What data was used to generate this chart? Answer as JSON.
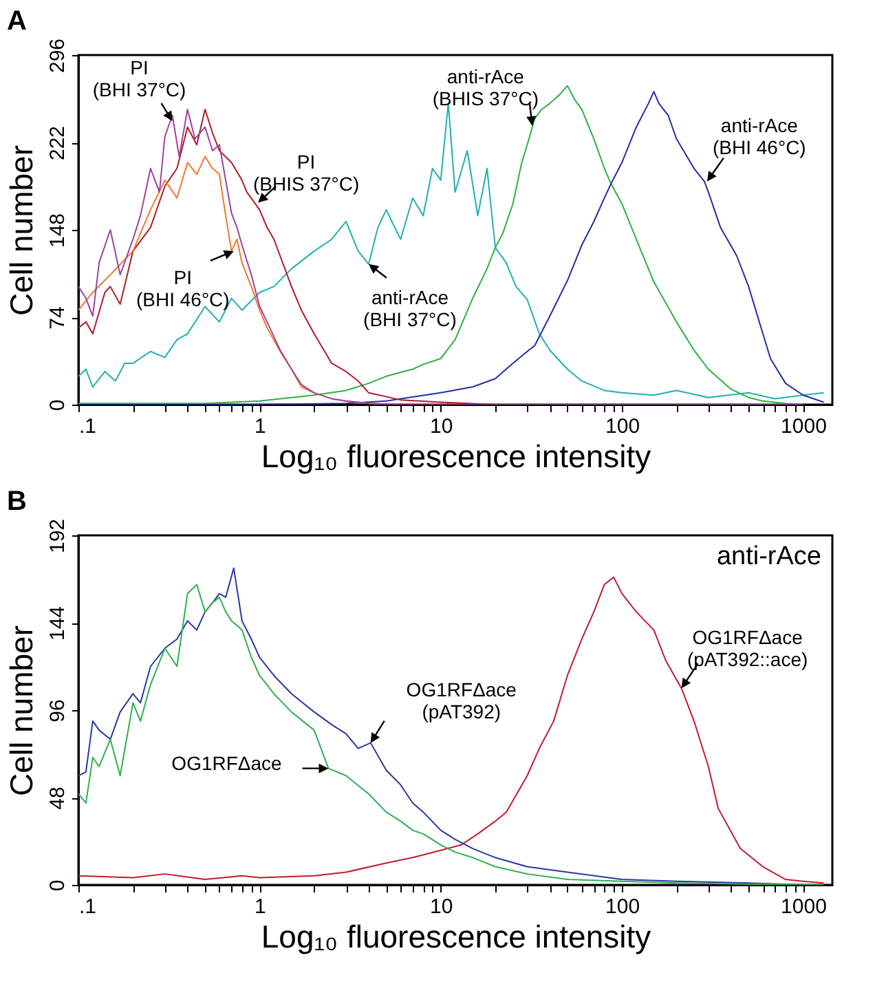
{
  "chart_data": [
    {
      "type": "line",
      "title": "A",
      "xlabel": "Log₁₀ fluorescence intensity",
      "ylabel": "Cell number",
      "log": "x",
      "xlim": [
        0.1,
        1450
      ],
      "ylim": [
        0,
        296
      ],
      "yticks": [
        0,
        74,
        148,
        222,
        296
      ],
      "xticks": [
        {
          "value": 0.1,
          "label": ".1"
        },
        {
          "value": 0.2,
          "label": null
        },
        {
          "value": 0.3,
          "label": null
        },
        {
          "value": 0.4,
          "label": null
        },
        {
          "value": 0.5,
          "label": null
        },
        {
          "value": 0.6,
          "label": null
        },
        {
          "value": 0.7,
          "label": null
        },
        {
          "value": 0.8,
          "label": null
        },
        {
          "value": 0.9,
          "label": null
        },
        1,
        {
          "value": 2,
          "label": null
        },
        {
          "value": 3,
          "label": null
        },
        {
          "value": 4,
          "label": null
        },
        {
          "value": 5,
          "label": null
        },
        {
          "value": 6,
          "label": null
        },
        {
          "value": 7,
          "label": null
        },
        {
          "value": 8,
          "label": null
        },
        {
          "value": 9,
          "label": null
        },
        10,
        {
          "value": 20,
          "label": null
        },
        {
          "value": 30,
          "label": null
        },
        {
          "value": 40,
          "label": null
        },
        {
          "value": 50,
          "label": null
        },
        {
          "value": 60,
          "label": null
        },
        {
          "value": 70,
          "label": null
        },
        {
          "value": 80,
          "label": null
        },
        {
          "value": 90,
          "label": null
        },
        100,
        {
          "value": 200,
          "label": null
        },
        {
          "value": 300,
          "label": null
        },
        {
          "value": 400,
          "label": null
        },
        {
          "value": 500,
          "label": null
        },
        {
          "value": 600,
          "label": null
        },
        {
          "value": 700,
          "label": null
        },
        {
          "value": 800,
          "label": null
        },
        {
          "value": 900,
          "label": null
        },
        1000
      ],
      "series": [
        {
          "color": "#20b0b0",
          "x": [
            0.1,
            0.11,
            0.12,
            0.14,
            0.16,
            0.18,
            0.2,
            0.25,
            0.3,
            0.35,
            0.4,
            0.5,
            0.6,
            0.7,
            0.8,
            1,
            1.2,
            1.5,
            2,
            2.5,
            3,
            3.5,
            4,
            4.5,
            5,
            6,
            7,
            8,
            9,
            10,
            11,
            12,
            14,
            16,
            18,
            20,
            23,
            26,
            30,
            35,
            40,
            50,
            60,
            80,
            100,
            150,
            200,
            300,
            500,
            700,
            1000,
            1300
          ],
          "values": [
            24,
            30,
            15,
            28,
            20,
            35,
            35,
            45,
            40,
            55,
            60,
            83,
            70,
            90,
            80,
            95,
            100,
            115,
            130,
            140,
            155,
            130,
            119,
            150,
            165,
            140,
            175,
            160,
            200,
            190,
            255,
            180,
            215,
            160,
            200,
            133,
            120,
            100,
            89,
            60,
            46,
            30,
            20,
            12,
            10,
            8,
            12,
            6,
            10,
            5,
            8,
            10
          ]
        },
        {
          "color": "#30b040",
          "x": [
            0.1,
            0.3,
            0.5,
            1,
            2,
            3,
            4,
            5,
            7,
            8,
            10,
            12,
            15,
            18,
            20,
            22,
            25,
            28,
            30,
            33,
            36,
            40,
            45,
            50,
            55,
            60,
            70,
            80,
            87,
            100,
            120,
            150,
            200,
            250,
            300,
            400,
            500,
            600,
            800,
            1000
          ],
          "values": [
            1,
            1,
            1,
            3,
            8,
            12,
            18,
            24,
            30,
            34,
            39,
            55,
            90,
            115,
            133,
            145,
            170,
            205,
            220,
            242,
            250,
            255,
            262,
            270,
            258,
            250,
            225,
            200,
            187,
            170,
            140,
            104,
            70,
            46,
            30,
            13,
            6,
            3,
            1,
            0
          ]
        },
        {
          "color": "#2030a0",
          "x": [
            0.1,
            1,
            3,
            5,
            10,
            15,
            20,
            25,
            30,
            33,
            40,
            50,
            60,
            70,
            80,
            87,
            100,
            120,
            140,
            150,
            160,
            180,
            200,
            250,
            285,
            300,
            350,
            430,
            500,
            600,
            660,
            800,
            1000,
            1300
          ],
          "values": [
            0,
            0,
            1,
            3,
            10,
            15,
            22,
            35,
            45,
            50,
            75,
            105,
            135,
            155,
            175,
            187,
            205,
            235,
            255,
            265,
            255,
            245,
            225,
            200,
            189,
            180,
            150,
            126,
            100,
            60,
            39,
            18,
            8,
            2
          ]
        },
        {
          "color": "#b01c24",
          "x": [
            0.1,
            0.11,
            0.12,
            0.14,
            0.15,
            0.17,
            0.2,
            0.25,
            0.3,
            0.35,
            0.4,
            0.45,
            0.5,
            0.55,
            0.6,
            0.7,
            0.8,
            0.85,
            1,
            1.1,
            1.2,
            1.5,
            1.7,
            2,
            2.5,
            3,
            3.5,
            4,
            6,
            10,
            20,
            1000
          ],
          "values": [
            65,
            70,
            60,
            95,
            100,
            85,
            130,
            150,
            185,
            200,
            235,
            220,
            250,
            230,
            215,
            205,
            190,
            180,
            165,
            150,
            140,
            100,
            80,
            60,
            35,
            28,
            20,
            10,
            4,
            2,
            0,
            0
          ]
        },
        {
          "color": "#f07830",
          "x": [
            0.1,
            0.12,
            0.15,
            0.2,
            0.25,
            0.3,
            0.35,
            0.4,
            0.45,
            0.5,
            0.55,
            0.6,
            0.65,
            0.7,
            0.75,
            0.8,
            0.9,
            1,
            1.1,
            1.3,
            1.5,
            1.7,
            2,
            2.5,
            3,
            4,
            6,
            10
          ],
          "values": [
            80,
            95,
            110,
            130,
            165,
            190,
            175,
            205,
            195,
            210,
            200,
            195,
            160,
            130,
            140,
            120,
            100,
            80,
            65,
            45,
            30,
            15,
            10,
            5,
            3,
            1,
            0,
            0
          ]
        },
        {
          "color": "#a040a0",
          "x": [
            0.1,
            0.11,
            0.12,
            0.13,
            0.15,
            0.17,
            0.2,
            0.22,
            0.25,
            0.28,
            0.3,
            0.33,
            0.36,
            0.4,
            0.44,
            0.5,
            0.55,
            0.6,
            0.65,
            0.7,
            0.75,
            0.8,
            0.9,
            1,
            1.1,
            1.3,
            1.5,
            1.7,
            2,
            2.5,
            3,
            4,
            6,
            10,
            30,
            100,
            1000
          ],
          "values": [
            100,
            90,
            75,
            120,
            148,
            110,
            140,
            160,
            200,
            180,
            227,
            245,
            210,
            250,
            225,
            235,
            215,
            220,
            190,
            162,
            150,
            135,
            110,
            83,
            70,
            46,
            30,
            17,
            10,
            5,
            3,
            1,
            0,
            0,
            0,
            0,
            0
          ]
        }
      ],
      "annotations": [
        {
          "text": "PI\n(BHI 37°C)",
          "x": 0.33,
          "y": 240
        },
        {
          "text": "PI\n(BHIS 37°C)",
          "x": 0.98,
          "y": 171
        },
        {
          "text": "PI\n(BHI 46°C)",
          "x": 0.72,
          "y": 130
        },
        {
          "text": "anti-rAce\n(BHI 37°C)",
          "x": 4,
          "y": 119
        },
        {
          "text": "anti-rAce\n(BHIS 37°C)",
          "x": 32,
          "y": 236
        },
        {
          "text": "anti-rAce\n(BHI 46°C)",
          "x": 295,
          "y": 189
        }
      ]
    },
    {
      "type": "line",
      "title": "B",
      "xlabel": "Log₁₀ fluorescence intensity",
      "ylabel": "Cell number",
      "log": "x",
      "xlim": [
        0.1,
        1450
      ],
      "ylim": [
        0,
        192
      ],
      "yticks": [
        0,
        48,
        96,
        144,
        192
      ],
      "xticks": [
        {
          "value": 0.1,
          "label": ".1"
        },
        {
          "value": 0.2,
          "label": null
        },
        {
          "value": 0.3,
          "label": null
        },
        {
          "value": 0.4,
          "label": null
        },
        {
          "value": 0.5,
          "label": null
        },
        {
          "value": 0.6,
          "label": null
        },
        {
          "value": 0.7,
          "label": null
        },
        {
          "value": 0.8,
          "label": null
        },
        {
          "value": 0.9,
          "label": null
        },
        1,
        {
          "value": 2,
          "label": null
        },
        {
          "value": 3,
          "label": null
        },
        {
          "value": 4,
          "label": null
        },
        {
          "value": 5,
          "label": null
        },
        {
          "value": 6,
          "label": null
        },
        {
          "value": 7,
          "label": null
        },
        {
          "value": 8,
          "label": null
        },
        {
          "value": 9,
          "label": null
        },
        10,
        {
          "value": 20,
          "label": null
        },
        {
          "value": 30,
          "label": null
        },
        {
          "value": 40,
          "label": null
        },
        {
          "value": 50,
          "label": null
        },
        {
          "value": 60,
          "label": null
        },
        {
          "value": 70,
          "label": null
        },
        {
          "value": 80,
          "label": null
        },
        {
          "value": 90,
          "label": null
        },
        100,
        {
          "value": 200,
          "label": null
        },
        {
          "value": 300,
          "label": null
        },
        {
          "value": 400,
          "label": null
        },
        {
          "value": 500,
          "label": null
        },
        {
          "value": 600,
          "label": null
        },
        {
          "value": 700,
          "label": null
        },
        {
          "value": 800,
          "label": null
        },
        {
          "value": 900,
          "label": null
        },
        1000
      ],
      "series": [
        {
          "color": "#c01c2c",
          "x": [
            0.1,
            0.2,
            0.3,
            0.5,
            0.8,
            1,
            2,
            3,
            5,
            7,
            10,
            13,
            16,
            20,
            23,
            30,
            35,
            42,
            50,
            60,
            70,
            80,
            90,
            100,
            120,
            150,
            175,
            213,
            250,
            300,
            340,
            450,
            600,
            800,
            1000,
            1300
          ],
          "values": [
            5,
            4,
            6,
            3,
            5,
            4,
            5,
            7,
            12,
            15,
            19,
            22,
            28,
            35,
            40,
            60,
            75,
            90,
            115,
            135,
            150,
            165,
            169,
            160,
            150,
            140,
            123,
            108,
            90,
            65,
            42,
            20,
            10,
            3,
            2,
            1
          ]
        },
        {
          "color": "#2838a0",
          "x": [
            0.1,
            0.11,
            0.12,
            0.13,
            0.15,
            0.17,
            0.2,
            0.22,
            0.25,
            0.3,
            0.35,
            0.4,
            0.45,
            0.5,
            0.55,
            0.6,
            0.65,
            0.72,
            0.8,
            0.9,
            1,
            1.2,
            1.5,
            2,
            2.5,
            3,
            3.5,
            4.1,
            5,
            6,
            7,
            8,
            10,
            12,
            15,
            20,
            30,
            50,
            100,
            200,
            500,
            1000,
            1300
          ],
          "values": [
            60,
            62,
            90,
            85,
            80,
            95,
            105,
            100,
            120,
            130,
            135,
            145,
            140,
            150,
            155,
            160,
            158,
            174,
            145,
            135,
            125,
            115,
            105,
            95,
            88,
            83,
            75,
            78,
            63,
            55,
            45,
            40,
            30,
            25,
            20,
            15,
            10,
            7,
            3,
            2,
            1,
            0,
            0
          ]
        },
        {
          "color": "#30b050",
          "x": [
            0.1,
            0.11,
            0.12,
            0.13,
            0.15,
            0.17,
            0.2,
            0.22,
            0.25,
            0.3,
            0.35,
            0.4,
            0.45,
            0.5,
            0.55,
            0.6,
            0.65,
            0.7,
            0.8,
            0.9,
            1,
            1.2,
            1.5,
            2,
            2.4,
            3,
            4,
            5,
            6,
            7,
            8,
            10,
            12,
            15,
            20,
            30,
            50,
            100,
            200,
            1000,
            1300
          ],
          "values": [
            50,
            45,
            70,
            65,
            80,
            60,
            100,
            90,
            110,
            130,
            120,
            160,
            165,
            150,
            155,
            158,
            150,
            145,
            140,
            125,
            115,
            105,
            95,
            85,
            64,
            60,
            50,
            40,
            35,
            30,
            28,
            22,
            18,
            15,
            10,
            6,
            3,
            2,
            1,
            0,
            0
          ]
        }
      ],
      "annotations": [
        "anti-rAce",
        {
          "text": "OG1RFΔace\n(pAT392)",
          "x": 4.1,
          "y": 78
        },
        {
          "text": "OG1RFΔace",
          "x": 2.4,
          "y": 64
        },
        {
          "text": "OG1RFΔace\n(pAT392::ace)",
          "x": 213,
          "y": 108
        }
      ]
    }
  ]
}
